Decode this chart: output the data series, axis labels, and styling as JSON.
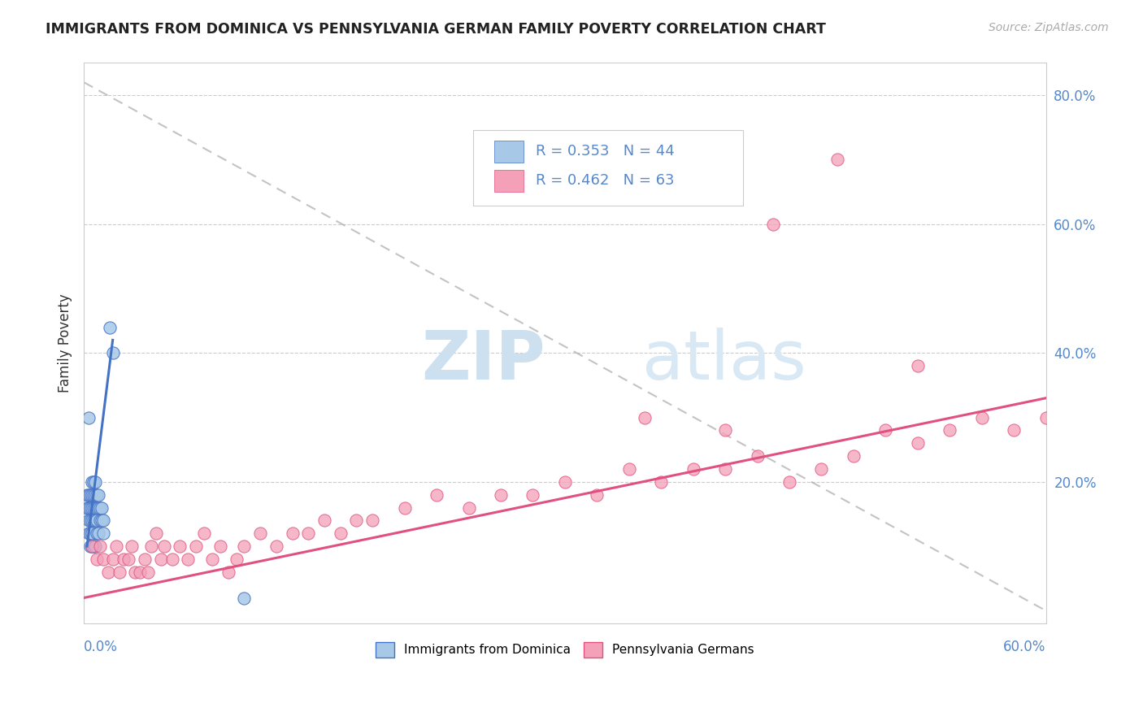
{
  "title": "IMMIGRANTS FROM DOMINICA VS PENNSYLVANIA GERMAN FAMILY POVERTY CORRELATION CHART",
  "source": "Source: ZipAtlas.com",
  "ylabel": "Family Poverty",
  "xlim": [
    0.0,
    0.6
  ],
  "ylim": [
    -0.02,
    0.85
  ],
  "blue_R": 0.353,
  "blue_N": 44,
  "pink_R": 0.462,
  "pink_N": 63,
  "blue_color": "#a8c8e8",
  "pink_color": "#f4a0b8",
  "blue_edge": "#4472c4",
  "pink_edge": "#e05080",
  "legend_box_color": "#f0f0f0",
  "grid_color": "#cccccc",
  "tick_color": "#5588cc",
  "diag_color": "#aaaaaa",
  "blue_scatter_x": [
    0.002,
    0.002,
    0.003,
    0.003,
    0.003,
    0.003,
    0.004,
    0.004,
    0.004,
    0.004,
    0.004,
    0.005,
    0.005,
    0.005,
    0.005,
    0.005,
    0.005,
    0.006,
    0.006,
    0.006,
    0.006,
    0.006,
    0.007,
    0.007,
    0.007,
    0.007,
    0.007,
    0.008,
    0.008,
    0.008,
    0.008,
    0.009,
    0.009,
    0.009,
    0.01,
    0.01,
    0.011,
    0.011,
    0.012,
    0.012,
    0.016,
    0.018,
    0.1,
    0.003
  ],
  "blue_scatter_y": [
    0.18,
    0.16,
    0.18,
    0.16,
    0.14,
    0.12,
    0.18,
    0.16,
    0.14,
    0.12,
    0.1,
    0.2,
    0.18,
    0.16,
    0.14,
    0.12,
    0.1,
    0.2,
    0.18,
    0.16,
    0.14,
    0.1,
    0.2,
    0.18,
    0.16,
    0.14,
    0.1,
    0.18,
    0.16,
    0.14,
    0.12,
    0.18,
    0.16,
    0.12,
    0.16,
    0.14,
    0.16,
    0.14,
    0.14,
    0.12,
    0.44,
    0.4,
    0.02,
    0.3
  ],
  "pink_scatter_x": [
    0.005,
    0.008,
    0.01,
    0.012,
    0.015,
    0.018,
    0.02,
    0.022,
    0.025,
    0.028,
    0.03,
    0.032,
    0.035,
    0.038,
    0.04,
    0.042,
    0.045,
    0.048,
    0.05,
    0.055,
    0.06,
    0.065,
    0.07,
    0.075,
    0.08,
    0.085,
    0.09,
    0.095,
    0.1,
    0.11,
    0.12,
    0.13,
    0.14,
    0.15,
    0.16,
    0.17,
    0.18,
    0.2,
    0.22,
    0.24,
    0.26,
    0.28,
    0.3,
    0.32,
    0.34,
    0.36,
    0.38,
    0.4,
    0.42,
    0.44,
    0.46,
    0.48,
    0.5,
    0.52,
    0.54,
    0.56,
    0.58,
    0.6,
    0.35,
    0.4,
    0.43,
    0.47,
    0.52
  ],
  "pink_scatter_y": [
    0.1,
    0.08,
    0.1,
    0.08,
    0.06,
    0.08,
    0.1,
    0.06,
    0.08,
    0.08,
    0.1,
    0.06,
    0.06,
    0.08,
    0.06,
    0.1,
    0.12,
    0.08,
    0.1,
    0.08,
    0.1,
    0.08,
    0.1,
    0.12,
    0.08,
    0.1,
    0.06,
    0.08,
    0.1,
    0.12,
    0.1,
    0.12,
    0.12,
    0.14,
    0.12,
    0.14,
    0.14,
    0.16,
    0.18,
    0.16,
    0.18,
    0.18,
    0.2,
    0.18,
    0.22,
    0.2,
    0.22,
    0.22,
    0.24,
    0.2,
    0.22,
    0.24,
    0.28,
    0.26,
    0.28,
    0.3,
    0.28,
    0.3,
    0.3,
    0.28,
    0.6,
    0.7,
    0.38
  ],
  "blue_line_x": [
    0.002,
    0.018
  ],
  "blue_line_y": [
    0.1,
    0.42
  ],
  "pink_line_x": [
    0.0,
    0.6
  ],
  "pink_line_y": [
    0.02,
    0.33
  ],
  "diag_line_x": [
    0.0,
    0.6
  ],
  "diag_line_y": [
    0.82,
    0.0
  ]
}
